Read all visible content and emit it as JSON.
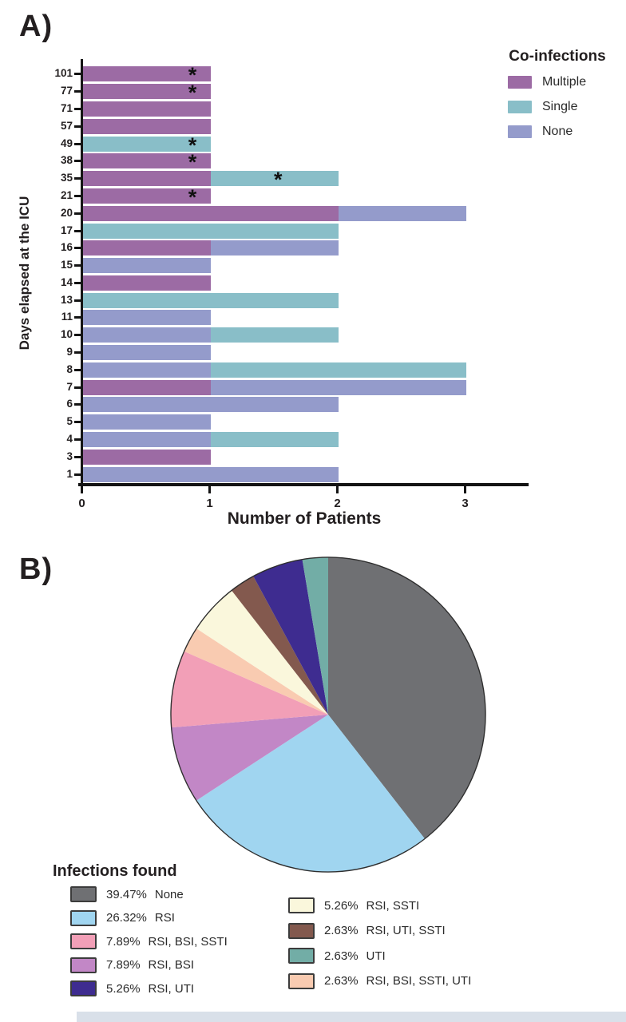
{
  "panelA": {
    "label": "A)",
    "ylabel": "Days elapsed at the ICU",
    "xlabel": "Number of Patients",
    "legend": {
      "title": "Co-infections",
      "items": [
        {
          "label": "Multiple",
          "color": "#9C6BA4"
        },
        {
          "label": "Single",
          "color": "#89BEC8"
        },
        {
          "label": "None",
          "color": "#949BCB"
        }
      ]
    }
  },
  "panelB": {
    "label": "B)",
    "legend_title": "Infections found",
    "legend_left": [
      {
        "pct": "39.47%",
        "label": "None"
      },
      {
        "pct": "26.32%",
        "label": "RSI"
      },
      {
        "pct": "7.89%",
        "label": "RSI, BSI, SSTI"
      },
      {
        "pct": "7.89%",
        "label": "RSI, BSI"
      },
      {
        "pct": "5.26%",
        "label": "RSI, UTI"
      }
    ],
    "legend_right": [
      {
        "pct": "5.26%",
        "label": "RSI, SSTI"
      },
      {
        "pct": "2.63%",
        "label": "RSI, UTI, SSTI"
      },
      {
        "pct": "2.63%",
        "label": "UTI"
      },
      {
        "pct": "2.63%",
        "label": "RSI, BSI, SSTI, UTI"
      }
    ]
  },
  "chart_data": [
    {
      "type": "bar",
      "orientation": "horizontal",
      "stacked": true,
      "xlabel": "Number of Patients",
      "ylabel": "Days elapsed at the ICU",
      "xlim": [
        0,
        3.5
      ],
      "xticks": [
        0,
        1,
        2,
        3
      ],
      "legend_title": "Co-infections",
      "series_colors": {
        "Multiple": "#9C6BA4",
        "Single": "#89BEC8",
        "None": "#949BCB"
      },
      "categories": [
        "101",
        "77",
        "71",
        "57",
        "49",
        "38",
        "35",
        "21",
        "20",
        "17",
        "16",
        "15",
        "14",
        "13",
        "11",
        "10",
        "9",
        "8",
        "7",
        "6",
        "5",
        "4",
        "3",
        "1"
      ],
      "bars": [
        {
          "category": "101",
          "segments": [
            {
              "series": "Multiple",
              "value": 1
            }
          ],
          "asterisk_x": 0.88
        },
        {
          "category": "77",
          "segments": [
            {
              "series": "Multiple",
              "value": 1
            }
          ],
          "asterisk_x": 0.88
        },
        {
          "category": "71",
          "segments": [
            {
              "series": "Multiple",
              "value": 1
            }
          ],
          "asterisk_x": null
        },
        {
          "category": "57",
          "segments": [
            {
              "series": "Multiple",
              "value": 1
            }
          ],
          "asterisk_x": null
        },
        {
          "category": "49",
          "segments": [
            {
              "series": "Single",
              "value": 1
            }
          ],
          "asterisk_x": 0.88
        },
        {
          "category": "38",
          "segments": [
            {
              "series": "Multiple",
              "value": 1
            }
          ],
          "asterisk_x": 0.88
        },
        {
          "category": "35",
          "segments": [
            {
              "series": "Multiple",
              "value": 1
            },
            {
              "series": "Single",
              "value": 1
            }
          ],
          "asterisk_x": 1.55
        },
        {
          "category": "21",
          "segments": [
            {
              "series": "Multiple",
              "value": 1
            }
          ],
          "asterisk_x": 0.88
        },
        {
          "category": "20",
          "segments": [
            {
              "series": "Multiple",
              "value": 2
            },
            {
              "series": "None",
              "value": 1
            }
          ],
          "asterisk_x": null
        },
        {
          "category": "17",
          "segments": [
            {
              "series": "Single",
              "value": 2
            }
          ],
          "asterisk_x": null
        },
        {
          "category": "16",
          "segments": [
            {
              "series": "Multiple",
              "value": 1
            },
            {
              "series": "None",
              "value": 1
            }
          ],
          "asterisk_x": null
        },
        {
          "category": "15",
          "segments": [
            {
              "series": "None",
              "value": 1
            }
          ],
          "asterisk_x": null
        },
        {
          "category": "14",
          "segments": [
            {
              "series": "Multiple",
              "value": 1
            }
          ],
          "asterisk_x": null
        },
        {
          "category": "13",
          "segments": [
            {
              "series": "Single",
              "value": 2
            }
          ],
          "asterisk_x": null
        },
        {
          "category": "11",
          "segments": [
            {
              "series": "None",
              "value": 1
            }
          ],
          "asterisk_x": null
        },
        {
          "category": "10",
          "segments": [
            {
              "series": "None",
              "value": 1
            },
            {
              "series": "Single",
              "value": 1
            }
          ],
          "asterisk_x": null
        },
        {
          "category": "9",
          "segments": [
            {
              "series": "None",
              "value": 1
            }
          ],
          "asterisk_x": null
        },
        {
          "category": "8",
          "segments": [
            {
              "series": "None",
              "value": 1
            },
            {
              "series": "Single",
              "value": 2
            }
          ],
          "asterisk_x": null
        },
        {
          "category": "7",
          "segments": [
            {
              "series": "Multiple",
              "value": 1
            },
            {
              "series": "None",
              "value": 2
            }
          ],
          "asterisk_x": null
        },
        {
          "category": "6",
          "segments": [
            {
              "series": "None",
              "value": 2
            }
          ],
          "asterisk_x": null
        },
        {
          "category": "5",
          "segments": [
            {
              "series": "None",
              "value": 1
            }
          ],
          "asterisk_x": null
        },
        {
          "category": "4",
          "segments": [
            {
              "series": "None",
              "value": 1
            },
            {
              "series": "Single",
              "value": 1
            }
          ],
          "asterisk_x": null
        },
        {
          "category": "3",
          "segments": [
            {
              "series": "Multiple",
              "value": 1
            }
          ],
          "asterisk_x": null
        },
        {
          "category": "1",
          "segments": [
            {
              "series": "None",
              "value": 2
            }
          ],
          "asterisk_x": null
        }
      ],
      "annotation_glyph": "*"
    },
    {
      "type": "pie",
      "title": "Infections found",
      "start_angle_deg": 0,
      "direction": "clockwise",
      "slices": [
        {
          "label": "None",
          "pct": 39.47,
          "color": "#6F7073"
        },
        {
          "label": "RSI",
          "pct": 26.32,
          "color": "#A0D5F0"
        },
        {
          "label": "RSI, BSI",
          "pct": 7.89,
          "color": "#C287C6"
        },
        {
          "label": "RSI, BSI, SSTI",
          "pct": 7.89,
          "color": "#F29FB7"
        },
        {
          "label": "RSI, BSI, SSTI, UTI",
          "pct": 2.63,
          "color": "#F9CBB1"
        },
        {
          "label": "RSI, SSTI",
          "pct": 5.26,
          "color": "#FAF7DC"
        },
        {
          "label": "RSI, UTI, SSTI",
          "pct": 2.63,
          "color": "#83594E"
        },
        {
          "label": "RSI, UTI",
          "pct": 5.26,
          "color": "#3E2C90"
        },
        {
          "label": "UTI",
          "pct": 2.63,
          "color": "#72ADA6"
        }
      ]
    }
  ]
}
